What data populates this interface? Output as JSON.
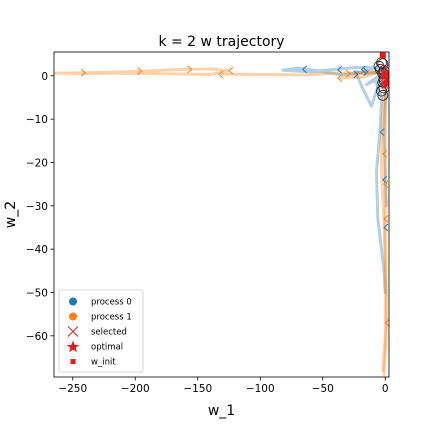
{
  "chart_data": {
    "type": "line",
    "title": "k = 2 w trajectory",
    "xlabel": "w_1",
    "ylabel": "w_2",
    "xlim": [
      -265,
      3
    ],
    "ylim": [
      -69.5,
      5.5
    ],
    "xticks": [
      -250,
      -200,
      -150,
      -100,
      -50,
      0
    ],
    "yticks": [
      0,
      -10,
      -20,
      -30,
      -40,
      -50,
      -60
    ],
    "xtick_labels": [
      "−250",
      "−200",
      "−150",
      "−100",
      "−50",
      "0"
    ],
    "ytick_labels": [
      "0",
      "−10",
      "−20",
      "−30",
      "−40",
      "−50",
      "−60"
    ],
    "grid": false,
    "legend_position": "lower-left",
    "legend": [
      {
        "label": "process 0",
        "marker": "circle",
        "color": "#1f77b4"
      },
      {
        "label": "process 1",
        "marker": "circle",
        "color": "#ff7f0e"
      },
      {
        "label": "selected",
        "marker": "x",
        "color": "#d62728"
      },
      {
        "label": "optimal",
        "marker": "star",
        "color": "#e41a1c"
      },
      {
        "label": "w_init",
        "marker": "square",
        "color": "#e41a1c"
      }
    ],
    "series": [
      {
        "color": "#1f77b4",
        "paths": [
          [
            [
              0.5,
              1.5
            ],
            [
              -8,
              1.8
            ],
            [
              -20,
              0.8
            ],
            [
              -35,
              0.2
            ],
            [
              -55,
              1.2
            ],
            [
              -70,
              1.8
            ],
            [
              -82,
              1.3
            ],
            [
              -60,
              0.9
            ],
            [
              -40,
              1.5
            ],
            [
              -25,
              1.9
            ],
            [
              -12,
              2.0
            ],
            [
              -4,
              1.4
            ],
            [
              0,
              0.9
            ],
            [
              1,
              0.2
            ]
          ],
          [
            [
              0.5,
              2.0
            ],
            [
              -4,
              0.2
            ],
            [
              -15,
              -2.0
            ],
            [
              -8,
              -1.0
            ],
            [
              -3,
              -5.0
            ],
            [
              -4,
              -12.0
            ],
            [
              -7,
              -22.0
            ],
            [
              -6,
              -33.0
            ],
            [
              -3,
              -40.0
            ],
            [
              -1,
              -45.0
            ],
            [
              0,
              -50.0
            ]
          ],
          [
            [
              1,
              1.0
            ],
            [
              0,
              -6.0
            ],
            [
              -1,
              -14.0
            ],
            [
              0,
              -24.0
            ],
            [
              1,
              -30.0
            ]
          ],
          [
            [
              -2,
              1.5
            ],
            [
              -6,
              -2.5
            ],
            [
              -11,
              -7.0
            ],
            [
              -18,
              -3.0
            ],
            [
              -24,
              1.0
            ],
            [
              -16,
              0.4
            ],
            [
              -6,
              0.8
            ]
          ]
        ],
        "arrows": [
          {
            "x": -66,
            "y": 1.5,
            "dir": -1
          },
          {
            "x": -38,
            "y": 1.4,
            "dir": -1
          },
          {
            "x": -19,
            "y": 1.5,
            "dir": -1
          },
          {
            "x": -14,
            "y": 0.9,
            "dir": 1
          },
          {
            "x": -22,
            "y": 0.3,
            "dir": 1
          },
          {
            "x": -6,
            "y": 1.1,
            "dir": -1
          },
          {
            "x": -4,
            "y": -13,
            "dir": -1
          },
          {
            "x": -2,
            "y": -24,
            "dir": -1
          },
          {
            "x": -1,
            "y": -35,
            "dir": -1
          }
        ]
      },
      {
        "color": "#ff7f0e",
        "paths": [
          [
            [
              -265,
              0.6
            ],
            [
              -240,
              0.7
            ],
            [
              -200,
              1.0
            ],
            [
              -160,
              1.5
            ],
            [
              -140,
              1.6
            ],
            [
              -126,
              1.2
            ],
            [
              -140,
              0.3
            ],
            [
              -175,
              0.5
            ],
            [
              -215,
              0.6
            ],
            [
              -255,
              0.5
            ]
          ],
          [
            [
              -130,
              0.4
            ],
            [
              -90,
              0.3
            ],
            [
              -62,
              0.2
            ],
            [
              -40,
              0.7
            ],
            [
              -25,
              0.6
            ],
            [
              -12,
              1.0
            ],
            [
              -4,
              0.4
            ],
            [
              0,
              -0.4
            ]
          ],
          [
            [
              -8,
              0.6
            ],
            [
              -18,
              -0.3
            ],
            [
              -35,
              -0.5
            ],
            [
              -22,
              0.4
            ],
            [
              -10,
              0.8
            ],
            [
              -3,
              0.5
            ]
          ],
          [
            [
              0,
              0.2
            ],
            [
              -1,
              -5.0
            ],
            [
              -2,
              -9.0
            ],
            [
              -3,
              -16.0
            ],
            [
              -3,
              -22.0
            ],
            [
              -2,
              -28.0
            ],
            [
              -1,
              -34.0
            ],
            [
              0,
              -42.0
            ],
            [
              1,
              -50.0
            ],
            [
              1,
              -57.0
            ],
            [
              0,
              -64.0
            ],
            [
              -1,
              -69.0
            ]
          ],
          [
            [
              0,
              0.0
            ],
            [
              0,
              -10.0
            ],
            [
              0,
              -20.0
            ],
            [
              0,
              -30.0
            ],
            [
              0,
              -40.0
            ],
            [
              0,
              -50.0
            ],
            [
              0,
              -60.0
            ],
            [
              -2,
              -68.0
            ]
          ]
        ],
        "arrows": [
          {
            "x": -240,
            "y": 0.7,
            "dir": 1
          },
          {
            "x": -195,
            "y": 1.1,
            "dir": 1
          },
          {
            "x": -155,
            "y": 1.5,
            "dir": 1
          },
          {
            "x": -125,
            "y": 1.2,
            "dir": -1
          },
          {
            "x": -133,
            "y": 0.3,
            "dir": -1
          },
          {
            "x": -28,
            "y": 0.5,
            "dir": 1
          },
          {
            "x": -38,
            "y": -0.5,
            "dir": -1
          },
          {
            "x": -2,
            "y": -18,
            "dir": -1
          },
          {
            "x": -1,
            "y": -25,
            "dir": -1
          },
          {
            "x": -1,
            "y": -33,
            "dir": -1
          },
          {
            "x": 0,
            "y": -57,
            "dir": -1
          }
        ]
      }
    ],
    "circles": [
      [
        -3,
        3.0
      ],
      [
        -4,
        1.5
      ],
      [
        -2,
        0.5
      ],
      [
        -1,
        -0.5
      ],
      [
        -2,
        -1.5
      ],
      [
        -1,
        -2.8
      ],
      [
        -3,
        -3.5
      ],
      [
        -2,
        -4.5
      ],
      [
        -1,
        -1.0
      ],
      [
        -5,
        2.2
      ],
      [
        -2,
        2.8
      ],
      [
        -1,
        1.2
      ]
    ],
    "selected": [
      [
        0,
        1.8
      ],
      [
        0,
        0.2
      ],
      [
        0,
        -0.8
      ],
      [
        0,
        -2.2
      ],
      [
        -1,
        0.9
      ],
      [
        -1,
        -1.6
      ]
    ],
    "optimal": [
      [
        0,
        0
      ]
    ],
    "w_init": [
      [
        -2,
        4.7
      ],
      [
        0,
        0.3
      ],
      [
        1,
        -1.7
      ]
    ]
  }
}
